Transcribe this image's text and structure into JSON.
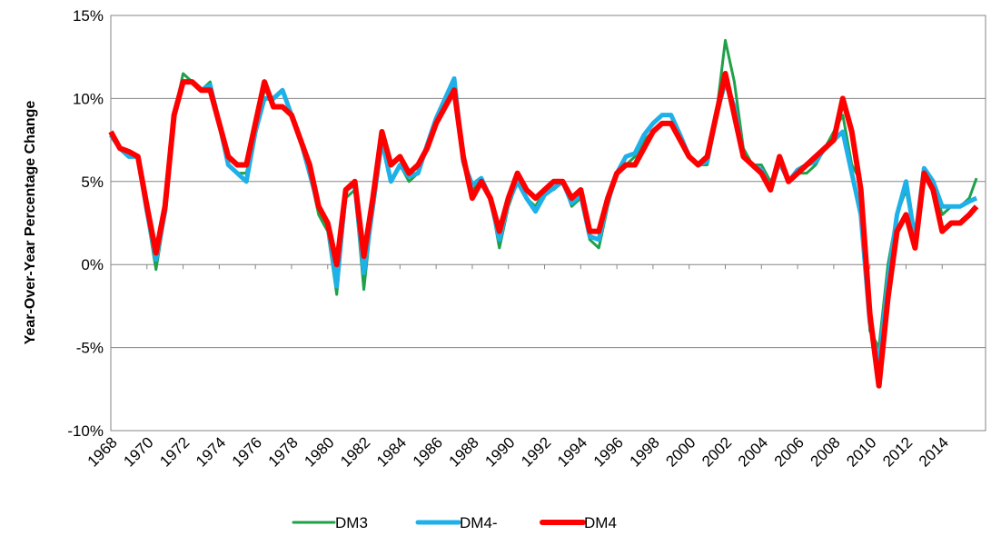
{
  "chart_data": {
    "type": "line",
    "y_label": "Year-Over-Year Percentage Change",
    "x": [
      1968,
      1968.5,
      1969,
      1969.5,
      1970,
      1970.5,
      1971,
      1971.5,
      1972,
      1972.5,
      1973,
      1973.5,
      1974,
      1974.5,
      1975,
      1975.5,
      1976,
      1976.5,
      1977,
      1977.5,
      1978,
      1978.5,
      1979,
      1979.5,
      1980,
      1980.5,
      1981,
      1981.5,
      1982,
      1982.5,
      1983,
      1983.5,
      1984,
      1984.5,
      1985,
      1985.5,
      1986,
      1986.5,
      1987,
      1987.5,
      1988,
      1988.5,
      1989,
      1989.5,
      1990,
      1990.5,
      1991,
      1991.5,
      1992,
      1992.5,
      1993,
      1993.5,
      1994,
      1994.5,
      1995,
      1995.5,
      1996,
      1996.5,
      1997,
      1997.5,
      1998,
      1998.5,
      1999,
      1999.5,
      2000,
      2000.5,
      2001,
      2001.5,
      2002,
      2002.5,
      2003,
      2003.5,
      2004,
      2004.5,
      2005,
      2005.5,
      2006,
      2006.5,
      2007,
      2007.5,
      2008,
      2008.5,
      2009,
      2009.5,
      2010,
      2010.5,
      2011,
      2011.5,
      2012,
      2012.5,
      2013,
      2013.5,
      2014,
      2014.5,
      2015,
      2015.5,
      2015.9
    ],
    "series": [
      {
        "name": "DM3",
        "color": "#1fa04a",
        "width": 3,
        "values": [
          7.8,
          7,
          6.5,
          6.5,
          3,
          -0.3,
          3,
          9,
          11.5,
          11,
          10.5,
          11,
          8.5,
          6,
          5.5,
          5.5,
          8,
          10.5,
          10,
          10.5,
          9,
          7.5,
          5.5,
          3,
          2,
          -1.8,
          4,
          4.5,
          -1.5,
          3.5,
          7.5,
          5,
          6,
          5,
          5.5,
          7,
          8.5,
          9.5,
          11,
          6,
          4.5,
          5,
          4,
          1,
          3.5,
          5,
          4,
          3.5,
          4.5,
          4.5,
          5,
          3.5,
          4,
          1.5,
          1,
          3.5,
          5.5,
          6,
          6.5,
          7.5,
          8,
          8.5,
          8.5,
          7.5,
          6.5,
          6,
          6,
          9,
          13.5,
          11,
          7,
          6,
          6,
          5,
          6,
          5,
          5.5,
          5.5,
          6,
          7,
          8,
          9,
          6,
          5,
          -4,
          -5,
          0,
          3,
          4.5,
          1.5,
          5.5,
          5,
          3,
          3.5,
          3.5,
          4,
          5.2
        ]
      },
      {
        "name": "DM4-",
        "color": "#1eb0e8",
        "width": 5,
        "values": [
          7.8,
          7,
          6.5,
          6.5,
          3.2,
          0.3,
          3.2,
          9,
          11,
          11,
          10.5,
          10.8,
          8.5,
          6,
          5.5,
          5,
          8,
          10,
          10,
          10.5,
          9,
          7.5,
          5.5,
          3.5,
          2.5,
          -1.3,
          4.5,
          4.8,
          -0.5,
          3.5,
          7.5,
          5,
          6,
          5.3,
          5.5,
          7.2,
          8.8,
          10,
          11.2,
          6.2,
          4.8,
          5.2,
          4,
          1.5,
          3.8,
          5,
          4,
          3.2,
          4.2,
          4.6,
          5,
          3.7,
          4.2,
          1.7,
          1.5,
          3.8,
          5.5,
          6.5,
          6.7,
          7.8,
          8.5,
          9,
          9,
          7.8,
          6.5,
          6,
          6.2,
          9,
          11,
          9.5,
          6.5,
          6,
          5.7,
          4.5,
          6.2,
          5,
          5.7,
          6,
          6.2,
          7,
          7.5,
          8,
          5.5,
          3,
          -3.5,
          -6,
          -1,
          3,
          5,
          1.5,
          5.8,
          5,
          3.5,
          3.5,
          3.5,
          3.8,
          4
        ]
      },
      {
        "name": "DM4",
        "color": "#ff0000",
        "width": 6,
        "values": [
          8,
          7,
          6.8,
          6.5,
          3.5,
          0.7,
          3.5,
          9,
          11,
          11,
          10.5,
          10.5,
          8.5,
          6.5,
          6,
          6,
          8.5,
          11,
          9.5,
          9.5,
          9,
          7.5,
          6,
          3.5,
          2.5,
          0,
          4.5,
          5,
          0.5,
          4,
          8,
          6,
          6.5,
          5.5,
          6,
          7,
          8.5,
          9.5,
          10.5,
          6.5,
          4,
          5,
          4,
          2,
          4,
          5.5,
          4.5,
          4,
          4.5,
          5,
          5,
          4,
          4.5,
          2,
          2,
          4,
          5.5,
          6,
          6,
          7,
          8,
          8.5,
          8.5,
          7.5,
          6.5,
          6,
          6.5,
          9,
          11.5,
          9,
          6.5,
          6,
          5.5,
          4.5,
          6.5,
          5,
          5.5,
          6,
          6.5,
          7,
          7.5,
          10,
          8,
          4.5,
          -3,
          -7.3,
          -2,
          2,
          3,
          1,
          5.5,
          4.5,
          2,
          2.5,
          2.5,
          3,
          3.5
        ]
      }
    ],
    "xlim": [
      1968,
      2016.4
    ],
    "xticks": [
      1968,
      1970,
      1972,
      1974,
      1976,
      1978,
      1980,
      1982,
      1984,
      1986,
      1988,
      1990,
      1992,
      1994,
      1996,
      1998,
      2000,
      2002,
      2004,
      2006,
      2008,
      2010,
      2012,
      2014
    ],
    "ylim": [
      -10,
      15
    ],
    "yticks": [
      {
        "value": -10,
        "label": "-10%"
      },
      {
        "value": -5,
        "label": "-5%"
      },
      {
        "value": 0,
        "label": "0%"
      },
      {
        "value": 5,
        "label": "5%"
      },
      {
        "value": 10,
        "label": "10%"
      },
      {
        "value": 15,
        "label": "15%"
      }
    ],
    "grid": true,
    "legend": "bottom"
  }
}
